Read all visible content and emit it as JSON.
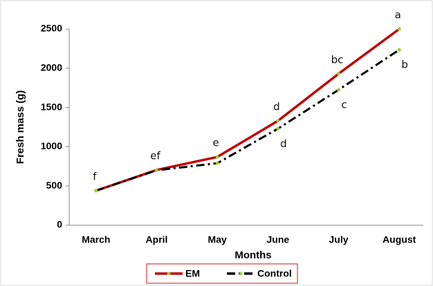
{
  "chart_data": {
    "type": "line",
    "x_label": "Months",
    "y_label": "Fresh mass (g)",
    "categories": [
      "March",
      "April",
      "May",
      "June",
      "July",
      "August"
    ],
    "series": [
      {
        "name": "EM",
        "color": "#c00000",
        "marker_color": "#9acd32",
        "dash": "solid",
        "values": [
          440,
          704,
          870,
          1330,
          1930,
          2500
        ],
        "letters": [
          "f",
          "ef",
          "e",
          "d",
          "bc",
          "a"
        ]
      },
      {
        "name": "Control",
        "color": "#000000",
        "marker_color": "#9acd32",
        "dash": "dashdot",
        "values": [
          440,
          700,
          790,
          1230,
          1725,
          2235
        ],
        "letters": [
          null,
          null,
          null,
          "d",
          "c",
          "b"
        ]
      }
    ],
    "ylim": [
      0,
      2500
    ],
    "yticks": [
      0,
      500,
      1000,
      1500,
      2000,
      2500
    ],
    "grid": false,
    "legend": "bottom"
  }
}
